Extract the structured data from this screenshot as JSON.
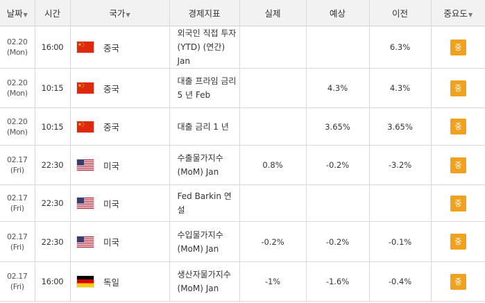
{
  "table": {
    "headers": {
      "date": "날짜",
      "time": "시간",
      "country": "국가",
      "indicator": "경제지표",
      "actual": "실제",
      "forecast": "예상",
      "previous": "이전",
      "importance": "중요도"
    },
    "rows": [
      {
        "date": "02.20",
        "day": "(Mon)",
        "time": "16:00",
        "flag": "china-flag-icon",
        "country": "중국",
        "indicator": "외국인 직접 투자 (YTD) (연간) Jan",
        "actual": "",
        "forecast": "",
        "previous": "6.3%",
        "importance": "중"
      },
      {
        "date": "02.20",
        "day": "(Mon)",
        "time": "10:15",
        "flag": "china-flag-icon",
        "country": "중국",
        "indicator": "대출 프라임 금리 5 년 Feb",
        "actual": "",
        "forecast": "4.3%",
        "previous": "4.3%",
        "importance": "중"
      },
      {
        "date": "02.20",
        "day": "(Mon)",
        "time": "10:15",
        "flag": "china-flag-icon",
        "country": "중국",
        "indicator": "대출 금리 1 년",
        "actual": "",
        "forecast": "3.65%",
        "previous": "3.65%",
        "importance": "중"
      },
      {
        "date": "02.17",
        "day": "(Fri)",
        "time": "22:30",
        "flag": "usa-flag-icon",
        "country": "미국",
        "indicator": "수출물가지수(MoM) Jan",
        "actual": "0.8%",
        "forecast": "-0.2%",
        "previous": "-3.2%",
        "importance": "중"
      },
      {
        "date": "02.17",
        "day": "(Fri)",
        "time": "22:30",
        "flag": "usa-flag-icon",
        "country": "미국",
        "indicator": "Fed Barkin 연설",
        "actual": "",
        "forecast": "",
        "previous": "",
        "importance": "중"
      },
      {
        "date": "02.17",
        "day": "(Fri)",
        "time": "22:30",
        "flag": "usa-flag-icon",
        "country": "미국",
        "indicator": "수입물가지수(MoM) Jan",
        "actual": "-0.2%",
        "forecast": "-0.2%",
        "previous": "-0.1%",
        "importance": "중"
      },
      {
        "date": "02.17",
        "day": "(Fri)",
        "time": "16:00",
        "flag": "germany-flag-icon",
        "country": "독일",
        "indicator": "생산자물가지수 (MoM) Jan",
        "actual": "-1%",
        "forecast": "-1.6%",
        "previous": "-0.4%",
        "importance": "중"
      }
    ]
  },
  "colors": {
    "header_bg": "#f2f2f2",
    "border": "#d9d9d9",
    "importance_badge": "#f0a11e"
  }
}
